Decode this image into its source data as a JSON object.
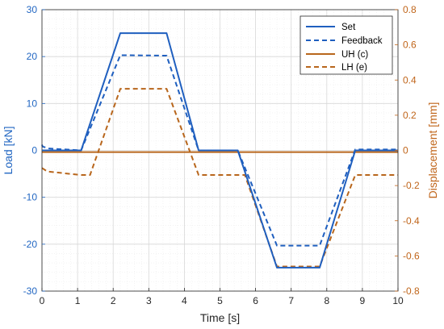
{
  "chart_data": {
    "type": "line",
    "xlabel": "Time [s]",
    "ylabel_left": "Load [kN]",
    "ylabel_right": "Displacement [mm]",
    "xlim": [
      0,
      10
    ],
    "ylim_left": [
      -30,
      30
    ],
    "ylim_right": [
      -0.8,
      0.8
    ],
    "x_ticks": [
      "0",
      "1",
      "2",
      "3",
      "4",
      "5",
      "6",
      "7",
      "8",
      "9",
      "10"
    ],
    "y_left_ticks": [
      "30",
      "20",
      "10",
      "0",
      "-10",
      "-20",
      "-30"
    ],
    "y_right_ticks": [
      "0.8",
      "0.6",
      "0.4",
      "0.2",
      "0",
      "-0.2",
      "-0.4",
      "-0.6",
      "-0.8"
    ],
    "grid": "on (major and minor)",
    "legend_position": "top-right",
    "colors": {
      "left_axis": "#2166c2",
      "right_axis": "#c0651a",
      "grid_major": "#d8d8d8",
      "grid_minor": "#ececec"
    },
    "series": [
      {
        "name": "Set",
        "axis": "left",
        "style": "solid",
        "color": "#1f5fbf",
        "x": [
          0,
          1.1,
          2.2,
          3.5,
          4.4,
          5.5,
          6.6,
          7.8,
          8.8,
          10
        ],
        "y": [
          0,
          0,
          25,
          25,
          0,
          0,
          -25,
          -25,
          0,
          0
        ]
      },
      {
        "name": "Feedback",
        "axis": "left",
        "style": "dashed",
        "color": "#1f5fbf",
        "x": [
          0,
          0.02,
          0.2,
          1.1,
          2.2,
          3.5,
          4.4,
          5.5,
          6.6,
          7.8,
          8.8,
          10
        ],
        "y": [
          1.2,
          0.8,
          0.4,
          0,
          20.3,
          20.2,
          0,
          0,
          -20.3,
          -20.3,
          0.2,
          0.2
        ]
      },
      {
        "name": "UH (c)",
        "axis": "right",
        "style": "solid",
        "color": "#b8661c",
        "x": [
          0,
          10
        ],
        "y": [
          -0.01,
          -0.01
        ]
      },
      {
        "name": "LH (e)",
        "axis": "right",
        "style": "dashed",
        "color": "#b8661c",
        "x": [
          0,
          0.15,
          1.1,
          1.35,
          2.2,
          3.5,
          4.4,
          4.6,
          5.5,
          5.7,
          6.6,
          7.8,
          8.8,
          10
        ],
        "y": [
          -0.1,
          -0.12,
          -0.14,
          -0.14,
          0.35,
          0.35,
          -0.14,
          -0.14,
          -0.14,
          -0.14,
          -0.66,
          -0.66,
          -0.14,
          -0.14
        ]
      }
    ]
  }
}
